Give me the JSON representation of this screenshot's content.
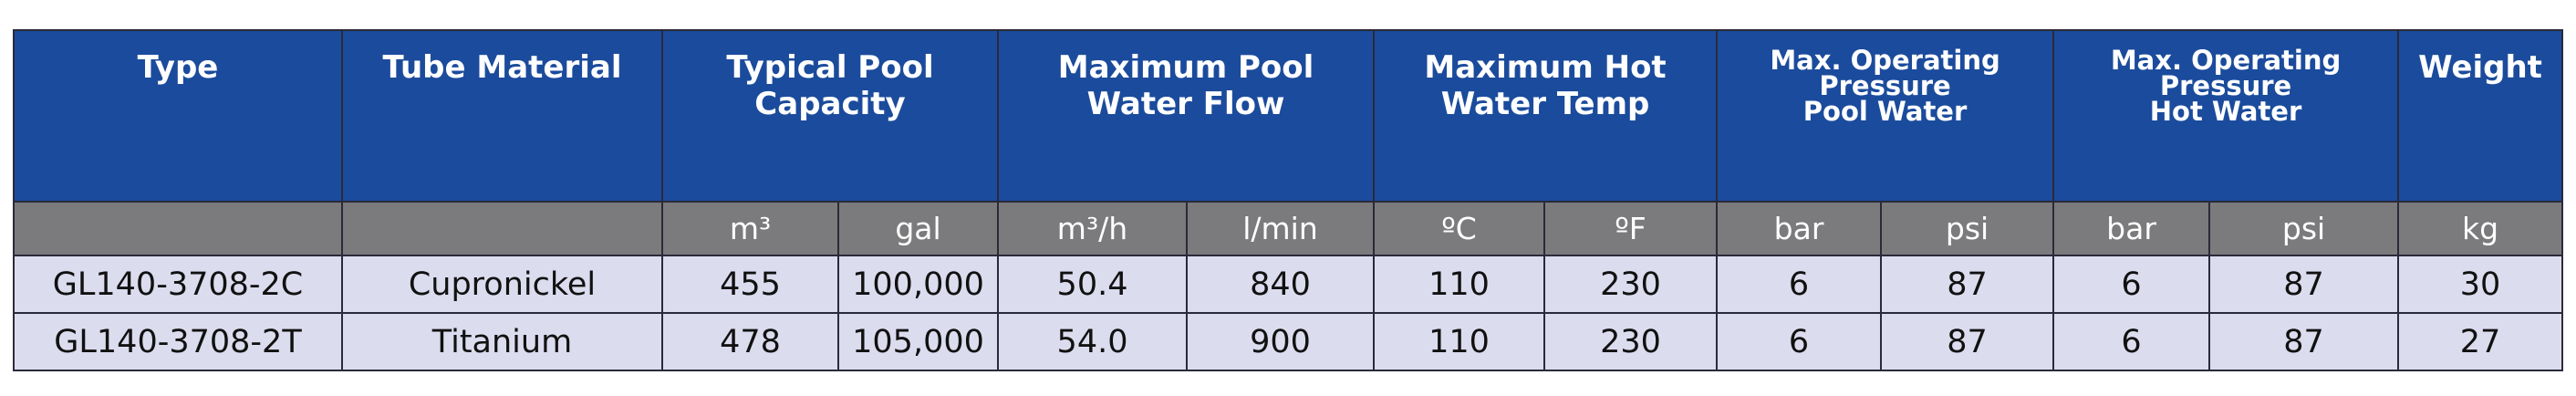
{
  "table": {
    "headers": [
      [
        "Type"
      ],
      [
        "Tube Material"
      ],
      [
        "Typical Pool",
        "Capacity"
      ],
      [
        "Maximum Pool",
        "Water Flow"
      ],
      [
        "Maximum Hot",
        "Water Temp"
      ],
      [
        "Max. Operating",
        "Pressure",
        "Pool Water"
      ],
      [
        "Max. Operating",
        "Pressure",
        "Hot Water"
      ],
      [
        "Weight"
      ]
    ],
    "units": [
      "m³",
      "gal",
      "m³/h",
      "l/min",
      "ºC",
      "ºF",
      "bar",
      "psi",
      "bar",
      "psi",
      "kg"
    ],
    "rows": [
      [
        "GL140-3708-2C",
        "Cupronickel",
        "455",
        "100,000",
        "50.4",
        "840",
        "110",
        "230",
        "6",
        "87",
        "6",
        "87",
        "30"
      ],
      [
        "GL140-3708-2T",
        "Titanium",
        "478",
        "105,000",
        "54.0",
        "900",
        "110",
        "230",
        "6",
        "87",
        "6",
        "87",
        "27"
      ]
    ]
  }
}
